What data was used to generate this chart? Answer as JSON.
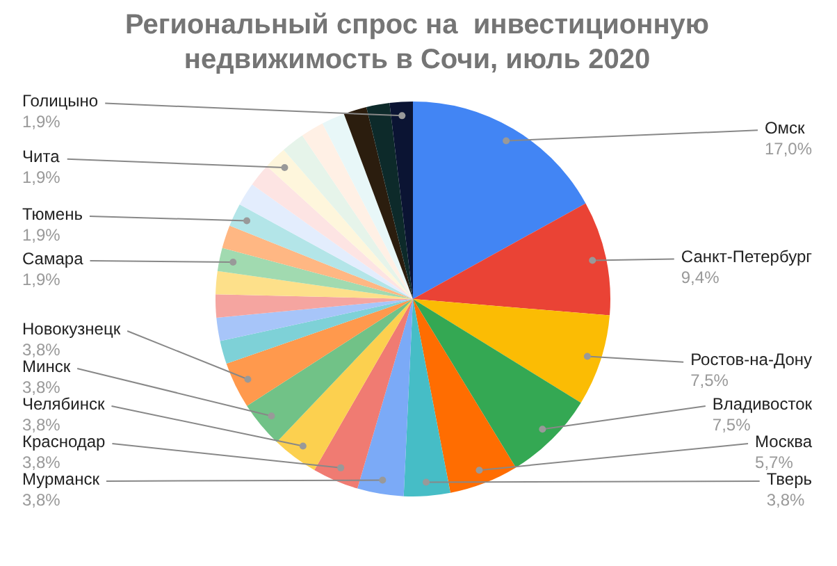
{
  "chart_data": {
    "type": "pie",
    "title": "Региональный спрос на  инвестиционную недвижимость в Сочи, июль 2020",
    "categories": [
      "Омск",
      "Санкт-Петербург",
      "Ростов-на-Дону",
      "Владивосток",
      "Москва",
      "Тверь",
      "Мурманск",
      "Краснодар",
      "Челябинск",
      "Минск",
      "Новокузнецк",
      null,
      null,
      null,
      null,
      "Самара",
      null,
      "Тюмень",
      null,
      null,
      "Чита",
      null,
      null,
      null,
      null,
      null,
      "Голицыно"
    ],
    "values": [
      17.0,
      9.4,
      7.5,
      7.5,
      5.7,
      3.8,
      3.8,
      3.8,
      3.8,
      3.8,
      3.8,
      1.9,
      1.9,
      1.9,
      1.9,
      1.9,
      1.9,
      1.9,
      1.9,
      1.9,
      1.9,
      1.9,
      1.9,
      1.9,
      1.9,
      1.9,
      1.9
    ],
    "value_labels": [
      "17,0%",
      "9,4%",
      "7,5%",
      "7,5%",
      "5,7%",
      "3,8%",
      "3,8%",
      "3,8%",
      "3,8%",
      "3,8%",
      "3,8%",
      null,
      null,
      null,
      null,
      "1,9%",
      null,
      "1,9%",
      null,
      null,
      "1,9%",
      null,
      null,
      null,
      null,
      null,
      "1,9%"
    ],
    "colors": [
      "#4285f4",
      "#ea4335",
      "#fbbc04",
      "#34a853",
      "#ff6d01",
      "#46bdc6",
      "#7baaf7",
      "#f07b72",
      "#fcd04f",
      "#71c287",
      "#ff994d",
      "#7ed1d7",
      "#a7c5f9",
      "#f5a5a0",
      "#fde08a",
      "#a1dab0",
      "#ffb783",
      "#b3e5e8",
      "#e3edfd",
      "#fde4e3",
      "#fef6dc",
      "#e6f4ea",
      "#fff0e5",
      "#e8f7f8",
      "#2b1d0e",
      "#0d2a2a",
      "#0b1433"
    ]
  }
}
